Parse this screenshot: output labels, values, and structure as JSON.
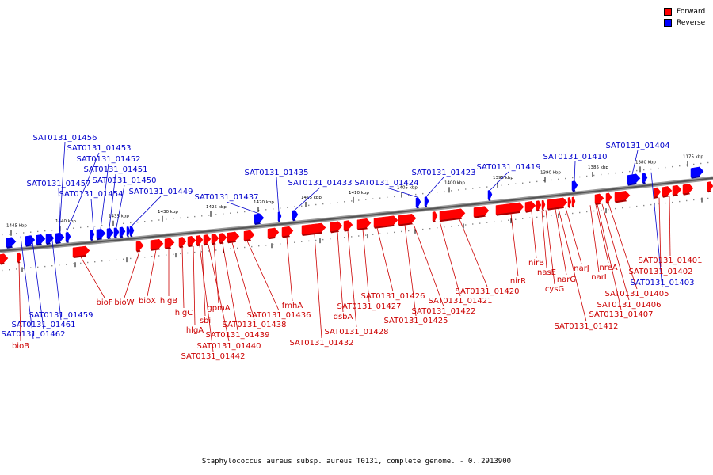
{
  "legend": [
    {
      "label": "Forward",
      "color": "#ff0000"
    },
    {
      "label": "Reverse",
      "color": "#0000ff"
    }
  ],
  "caption": "Staphylococcus aureus subsp. aureus T0131, complete genome. - 0..2913900",
  "colors": {
    "forward": "#ff0000",
    "forward_label": "#cc0000",
    "reverse": "#0000ff",
    "reverse_label": "#0000cc"
  },
  "scale_ticks": [
    "1445 kbp",
    "1440 kbp",
    "1435 kbp",
    "1430 kbp",
    "1425 kbp",
    "1420 kbp",
    "1415 kbp",
    "1410 kbp",
    "1405 kbp",
    "1400 kbp",
    "1395 kbp",
    "1390 kbp",
    "1385 kbp",
    "1380 kbp",
    "1175 kbp"
  ],
  "reverse_labels": [
    "SAT0131_01456",
    "SAT0131_01453",
    "SAT0131_01452",
    "SAT0131_01451",
    "SAT0131_01457",
    "SAT0131_01450",
    "SAT0131_01454",
    "SAT0131_01449",
    "SAT0131_01437",
    "SAT0131_01435",
    "SAT0131_01433",
    "SAT0131_01424",
    "SAT0131_01423",
    "SAT0131_01419",
    "SAT0131_01410",
    "SAT0131_01404",
    "SAT0131_01459",
    "SAT0131_01461",
    "SAT0131_01462",
    "SAT0131_01403"
  ],
  "forward_labels": [
    "bioB",
    "bioF",
    "bioW",
    "bioX",
    "hlgB",
    "hlgC",
    "hlgA",
    "sbi",
    "gpmA",
    "SAT0131_01439",
    "SAT0131_01438",
    "SAT0131_01440",
    "SAT0131_01442",
    "SAT0131_01436",
    "fmhA",
    "SAT0131_01432",
    "dsbA",
    "SAT0131_01428",
    "SAT0131_01427",
    "SAT0131_01426",
    "SAT0131_01425",
    "SAT0131_01422",
    "SAT0131_01421",
    "SAT0131_01420",
    "nirR",
    "nirB",
    "nasE",
    "cysG",
    "narG",
    "narJ",
    "narI",
    "nreA",
    "SAT0131_01412",
    "SAT0131_01407",
    "SAT0131_01406",
    "SAT0131_01405",
    "SAT0131_01402",
    "SAT0131_01401"
  ]
}
